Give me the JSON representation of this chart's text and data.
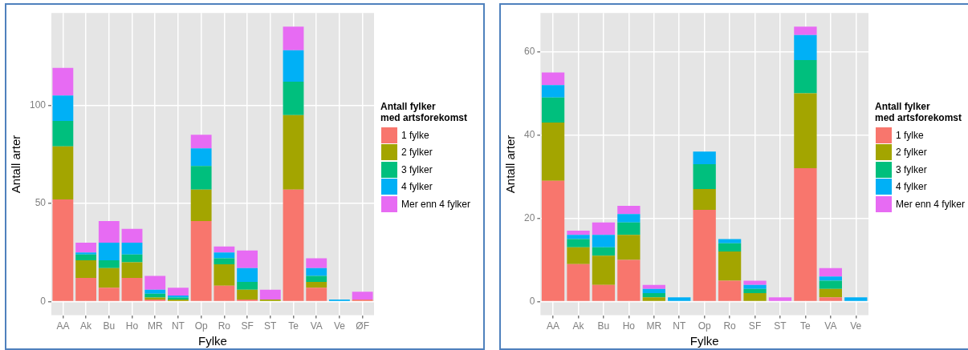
{
  "chart_data": [
    {
      "type": "bar",
      "stacked": true,
      "xlabel": "Fylke",
      "ylabel": "Antall arter",
      "legend_title": "Antall fylker\nmed artsforekomst",
      "legend": "right",
      "grid": true,
      "ylim": [
        -7,
        147
      ],
      "yticks": [
        0,
        50,
        100
      ],
      "categories": [
        "AA",
        "Ak",
        "Bu",
        "Ho",
        "MR",
        "NT",
        "Op",
        "Ro",
        "SF",
        "ST",
        "Te",
        "VA",
        "Ve",
        "ØF"
      ],
      "series": [
        {
          "name": "1 fylke",
          "color": "#f8766d",
          "values": [
            52,
            12,
            7,
            12,
            1,
            0,
            41,
            8,
            1,
            0,
            57,
            7,
            0,
            1
          ]
        },
        {
          "name": "2 fylker",
          "color": "#a3a500",
          "values": [
            27,
            9,
            10,
            8,
            1,
            1,
            16,
            11,
            5,
            1,
            38,
            3,
            0,
            0
          ]
        },
        {
          "name": "3 fylker",
          "color": "#00bf7d",
          "values": [
            13,
            3,
            4,
            4,
            2,
            1,
            12,
            3,
            4,
            0,
            17,
            3,
            0,
            0
          ]
        },
        {
          "name": "4 fylker",
          "color": "#00b0f6",
          "values": [
            13,
            1,
            9,
            6,
            2,
            1,
            9,
            3,
            7,
            0,
            16,
            4,
            1,
            0
          ]
        },
        {
          "name": "Mer enn 4 fylker",
          "color": "#e76bf3",
          "values": [
            14,
            5,
            11,
            7,
            7,
            4,
            7,
            3,
            9,
            5,
            12,
            5,
            0,
            4
          ]
        }
      ]
    },
    {
      "type": "bar",
      "stacked": true,
      "xlabel": "Fylke",
      "ylabel": "Antall arter",
      "legend_title": "Antall fylker\nmed artsforekomst",
      "legend": "right",
      "grid": true,
      "ylim": [
        -3.3,
        69.3
      ],
      "yticks": [
        0,
        20,
        40,
        60
      ],
      "categories": [
        "AA",
        "Ak",
        "Bu",
        "Ho",
        "MR",
        "NT",
        "Op",
        "Ro",
        "SF",
        "ST",
        "Te",
        "VA",
        "Ve"
      ],
      "series": [
        {
          "name": "1 fylke",
          "color": "#f8766d",
          "values": [
            29,
            9,
            4,
            10,
            0,
            0,
            22,
            5,
            0,
            0,
            32,
            1,
            0
          ]
        },
        {
          "name": "2 fylker",
          "color": "#a3a500",
          "values": [
            14,
            4,
            7,
            6,
            1,
            0,
            5,
            7,
            2,
            0,
            18,
            2,
            0
          ]
        },
        {
          "name": "3 fylker",
          "color": "#00bf7d",
          "values": [
            6,
            2,
            2,
            3,
            1,
            0,
            6,
            2,
            1,
            0,
            8,
            2,
            0
          ]
        },
        {
          "name": "4 fylker",
          "color": "#00b0f6",
          "values": [
            3,
            1,
            3,
            2,
            1,
            1,
            3,
            1,
            1,
            0,
            6,
            1,
            1
          ]
        },
        {
          "name": "Mer enn 4 fylker",
          "color": "#e76bf3",
          "values": [
            3,
            1,
            3,
            2,
            1,
            0,
            0,
            0,
            1,
            1,
            2,
            2,
            0
          ]
        }
      ]
    }
  ]
}
